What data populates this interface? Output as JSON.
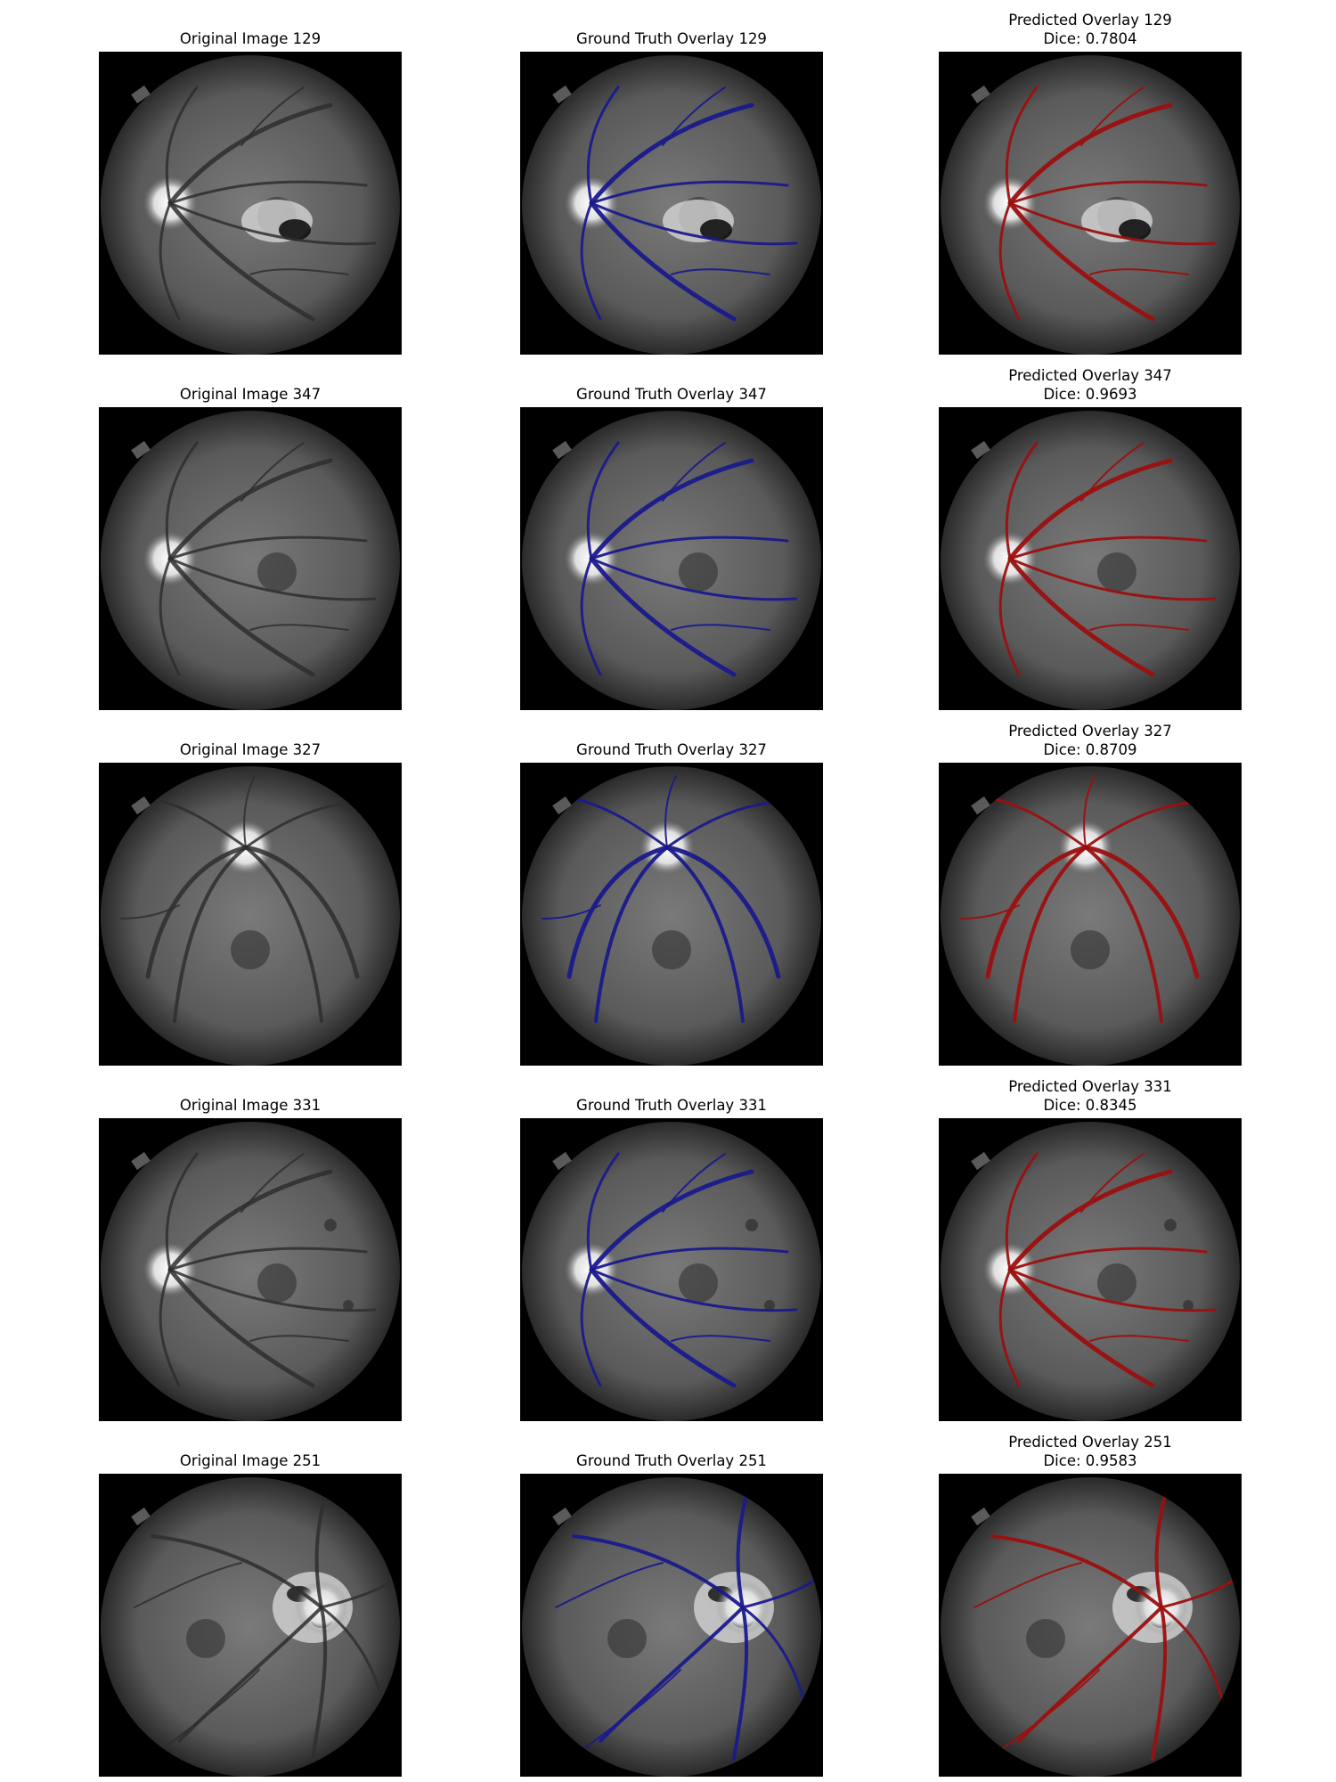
{
  "figure": {
    "rows": [
      {
        "id": 129,
        "original_title": "Original Image 129",
        "ground_truth_title": "Ground Truth Overlay 129",
        "predicted_title": "Predicted Overlay 129",
        "dice": "Dice: 0.7804",
        "disc_side": "left",
        "lesion": "exudates"
      },
      {
        "id": 347,
        "original_title": "Original Image 347",
        "ground_truth_title": "Ground Truth Overlay 347",
        "predicted_title": "Predicted Overlay 347",
        "dice": "Dice: 0.9693",
        "disc_side": "left",
        "lesion": "none"
      },
      {
        "id": 327,
        "original_title": "Original Image 327",
        "ground_truth_title": "Ground Truth Overlay 327",
        "predicted_title": "Predicted Overlay 327",
        "dice": "Dice: 0.8709",
        "disc_side": "top",
        "lesion": "none"
      },
      {
        "id": 331,
        "original_title": "Original Image 331",
        "ground_truth_title": "Ground Truth Overlay 331",
        "predicted_title": "Predicted Overlay 331",
        "dice": "Dice: 0.8345",
        "disc_side": "left",
        "lesion": "spots"
      },
      {
        "id": 251,
        "original_title": "Original Image 251",
        "ground_truth_title": "Ground Truth Overlay 251",
        "predicted_title": "Predicted Overlay 251",
        "dice": "Dice: 0.9583",
        "disc_side": "right",
        "lesion": "neovascular"
      }
    ],
    "colors": {
      "ground_truth_vessel": "#1a1a8c",
      "predicted_vessel": "#9b1010",
      "native_vessel": "#2e2e2e"
    }
  }
}
